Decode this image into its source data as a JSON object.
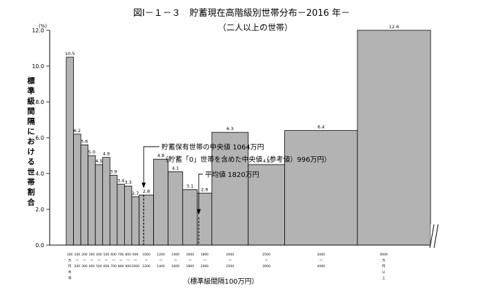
{
  "header": {
    "title": "図Ⅰ－１－３　貯蓄現在高階級別世帯分布－2016 年－",
    "subtitle": "（二人以上の世帯）"
  },
  "y_axis": {
    "unit": "(%)",
    "ticks": [
      "12.0",
      "10.0",
      "8.0",
      "6.0",
      "4.0",
      "2.0",
      "0.0"
    ],
    "label": "標準級間隔における世帯割合"
  },
  "x_axis": {
    "label": "（標準級間隔100万円）",
    "tick_labels": [
      [
        "100",
        "万",
        "円",
        "未",
        "満"
      ],
      [
        "100",
        "～",
        "200"
      ],
      [
        "200",
        "～",
        "300"
      ],
      [
        "300",
        "～",
        "400"
      ],
      [
        "400",
        "～",
        "500"
      ],
      [
        "500",
        "～",
        "600"
      ],
      [
        "600",
        "～",
        "700"
      ],
      [
        "700",
        "～",
        "800"
      ],
      [
        "800",
        "～",
        "900"
      ],
      [
        "900",
        "～",
        "1000"
      ],
      [
        "1000",
        "～",
        "1200"
      ],
      [
        "1200",
        "～",
        "1400"
      ],
      [
        "1400",
        "～",
        "1600"
      ],
      [
        "1600",
        "～",
        "1800"
      ],
      [
        "1800",
        "～",
        "2000"
      ],
      [
        "2000",
        "～",
        "2500"
      ],
      [
        "2500",
        "～",
        "3000"
      ],
      [
        "3000",
        "～",
        "4000"
      ],
      [
        "4000",
        "万",
        "円",
        "以",
        "上"
      ]
    ]
  },
  "annotations": {
    "median_holders": "貯蓄保有世帯の中央値 1064万円",
    "median_ref": "（貯蓄「0」世帯を含めた中央値（参考値）996万円）",
    "mean": "平均値 1820万円"
  },
  "chart_data": {
    "type": "bar",
    "title": "貯蓄現在高階級別世帯分布－2016 年－",
    "subtitle": "（二人以上の世帯）",
    "xlabel": "（標準級間隔100万円）",
    "ylabel": "標準級間隔における世帯割合",
    "unit": "(%)",
    "ylim": [
      0,
      12
    ],
    "bar_color": "#b3b3b3",
    "bins": [
      {
        "from": 0,
        "to": 100,
        "value": 10.5
      },
      {
        "from": 100,
        "to": 200,
        "value": 6.2
      },
      {
        "from": 200,
        "to": 300,
        "value": 5.6
      },
      {
        "from": 300,
        "to": 400,
        "value": 5.0
      },
      {
        "from": 400,
        "to": 500,
        "value": 4.5
      },
      {
        "from": 500,
        "to": 600,
        "value": 4.9
      },
      {
        "from": 600,
        "to": 700,
        "value": 3.9
      },
      {
        "from": 700,
        "to": 800,
        "value": 3.4
      },
      {
        "from": 800,
        "to": 900,
        "value": 3.3
      },
      {
        "from": 900,
        "to": 1000,
        "value": 2.7
      },
      {
        "from": 1000,
        "to": 1200,
        "value": 2.8
      },
      {
        "from": 1200,
        "to": 1400,
        "value": 4.8
      },
      {
        "from": 1400,
        "to": 1600,
        "value": 4.1
      },
      {
        "from": 1600,
        "to": 1800,
        "value": 3.1
      },
      {
        "from": 1800,
        "to": 2000,
        "value": 2.9
      },
      {
        "from": 2000,
        "to": 2500,
        "value": 6.3
      },
      {
        "from": 2500,
        "to": 3000,
        "value": 4.5
      },
      {
        "from": 3000,
        "to": 4000,
        "value": 6.4
      },
      {
        "from": 4000,
        "to": null,
        "value": 12.6
      }
    ],
    "value_labels": [
      "10.5",
      "6.2",
      "5.6",
      "5.0",
      "4.5",
      "4.9",
      "3.9",
      "3.4",
      "3.3",
      "2.7",
      "2.8",
      "4.8",
      "4.1",
      "3.1",
      "2.9",
      "6.3",
      "4.5",
      "6.4",
      "12.6"
    ],
    "reference_lines": [
      {
        "name": "median",
        "x": 1064
      },
      {
        "name": "mean",
        "x": 1820
      }
    ]
  }
}
